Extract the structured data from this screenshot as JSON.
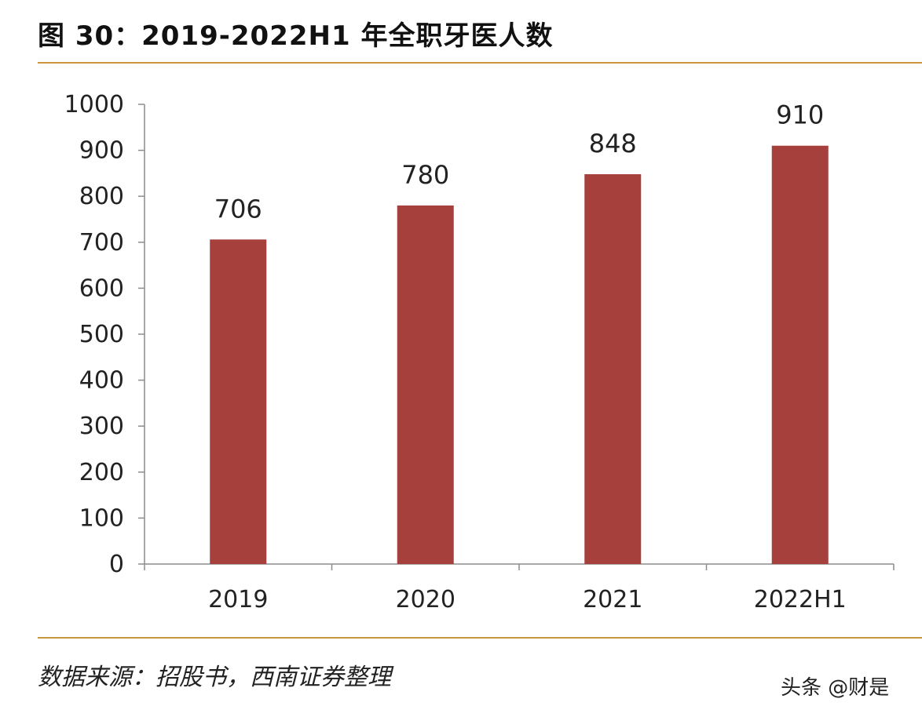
{
  "figure": {
    "title": "图 30：2019-2022H1 年全职牙医人数",
    "source": "数据来源：招股书，西南证券整理",
    "watermark": "头条 @财是"
  },
  "colors": {
    "bar": "#A5403D",
    "rule": "#C8963C",
    "axis": "#8C8C8C",
    "text": "#222222"
  },
  "chart_data": {
    "type": "bar",
    "title": "2019-2022H1 年全职牙医人数",
    "xlabel": "",
    "ylabel": "",
    "categories": [
      "2019",
      "2020",
      "2021",
      "2022H1"
    ],
    "values": [
      706,
      780,
      848,
      910
    ],
    "data_labels": [
      "706",
      "780",
      "848",
      "910"
    ],
    "ylim": [
      0,
      1000
    ],
    "yticks": [
      0,
      100,
      200,
      300,
      400,
      500,
      600,
      700,
      800,
      900,
      1000
    ],
    "grid": false,
    "legend": "none"
  }
}
